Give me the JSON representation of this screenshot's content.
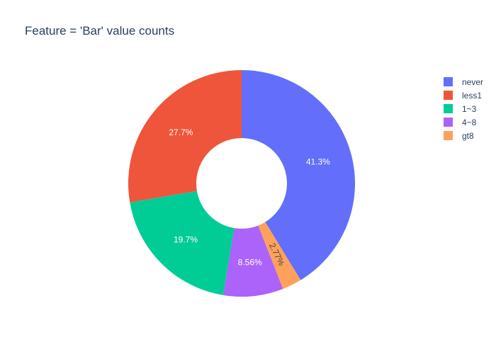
{
  "chart_data": {
    "type": "pie",
    "title": "Feature = 'Bar' value counts",
    "hole": 0.4,
    "direction": "clockwise",
    "start": "top",
    "legend_position": "top-right",
    "slices": [
      {
        "label": "never",
        "percent_label": "41.3%",
        "value": 41.3,
        "color": "#636efa"
      },
      {
        "label": "gt8",
        "percent_label": "2.77%",
        "value": 2.77,
        "color": "#ffa15a"
      },
      {
        "label": "4~8",
        "percent_label": "8.56%",
        "value": 8.56,
        "color": "#ab63fa"
      },
      {
        "label": "1~3",
        "percent_label": "19.7%",
        "value": 19.7,
        "color": "#00cc96"
      },
      {
        "label": "less1",
        "percent_label": "27.7%",
        "value": 27.7,
        "color": "#ef553b"
      }
    ],
    "legend": [
      {
        "label": "never",
        "color": "#636efa"
      },
      {
        "label": "less1",
        "color": "#ef553b"
      },
      {
        "label": "1~3",
        "color": "#00cc96"
      },
      {
        "label": "4~8",
        "color": "#ab63fa"
      },
      {
        "label": "gt8",
        "color": "#ffa15a"
      }
    ]
  }
}
